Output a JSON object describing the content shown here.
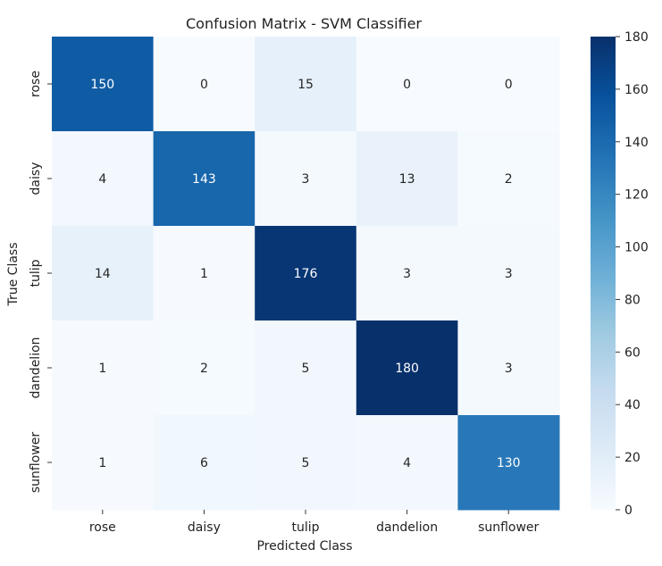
{
  "chart_data": {
    "type": "heatmap",
    "title": "Confusion Matrix - SVM Classifier",
    "xlabel": "Predicted Class",
    "ylabel": "True Class",
    "x_categories": [
      "rose",
      "daisy",
      "tulip",
      "dandelion",
      "sunflower"
    ],
    "y_categories": [
      "rose",
      "daisy",
      "tulip",
      "dandelion",
      "sunflower"
    ],
    "values": [
      [
        150,
        0,
        15,
        0,
        0
      ],
      [
        4,
        143,
        3,
        13,
        2
      ],
      [
        14,
        1,
        176,
        3,
        3
      ],
      [
        1,
        2,
        5,
        180,
        3
      ],
      [
        1,
        6,
        5,
        4,
        130
      ]
    ],
    "colorbar": {
      "min": 0,
      "max": 180,
      "ticks": [
        0,
        20,
        40,
        60,
        80,
        100,
        120,
        140,
        160,
        180
      ]
    },
    "colormap": [
      "#f7fbff",
      "#deebf7",
      "#c6dbef",
      "#9ecae1",
      "#6baed6",
      "#4292c6",
      "#2171b5",
      "#08519c",
      "#08306b"
    ],
    "grid": false,
    "legend": "none"
  }
}
